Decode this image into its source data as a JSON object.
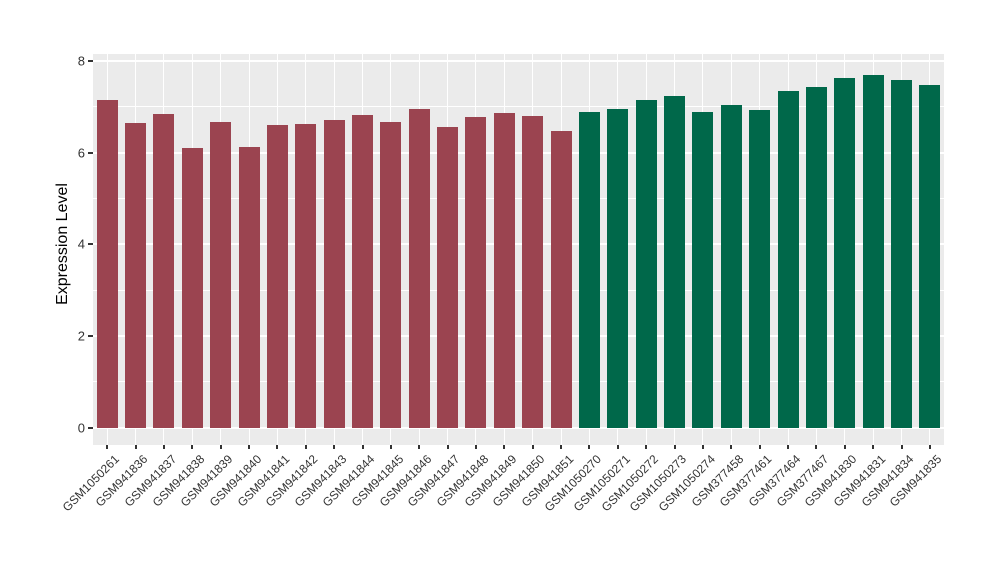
{
  "chart_data": {
    "type": "bar",
    "title": "",
    "xlabel": "",
    "ylabel": "Expression Level",
    "ylim": [
      0,
      8.15
    ],
    "yticks": [
      0,
      2,
      4,
      6,
      8
    ],
    "grid": true,
    "legend": "none",
    "panel_bg": "#EBEBEB",
    "grid_color": "#FFFFFF",
    "axis_text_color": "#333333",
    "groups": [
      {
        "name": "group-left-maroon",
        "color": "#9B4450"
      },
      {
        "name": "group-right-green",
        "color": "#00684A"
      }
    ],
    "samples": [
      {
        "id": "GSM1050261",
        "value": 7.15,
        "group": 0
      },
      {
        "id": "GSM941836",
        "value": 6.65,
        "group": 0
      },
      {
        "id": "GSM941837",
        "value": 6.85,
        "group": 0
      },
      {
        "id": "GSM941838",
        "value": 6.1,
        "group": 0
      },
      {
        "id": "GSM941839",
        "value": 6.67,
        "group": 0
      },
      {
        "id": "GSM941840",
        "value": 6.13,
        "group": 0
      },
      {
        "id": "GSM941841",
        "value": 6.6,
        "group": 0
      },
      {
        "id": "GSM941842",
        "value": 6.62,
        "group": 0
      },
      {
        "id": "GSM941843",
        "value": 6.72,
        "group": 0
      },
      {
        "id": "GSM941844",
        "value": 6.83,
        "group": 0
      },
      {
        "id": "GSM941845",
        "value": 6.67,
        "group": 0
      },
      {
        "id": "GSM941846",
        "value": 6.95,
        "group": 0
      },
      {
        "id": "GSM941847",
        "value": 6.57,
        "group": 0
      },
      {
        "id": "GSM941848",
        "value": 6.78,
        "group": 0
      },
      {
        "id": "GSM941849",
        "value": 6.87,
        "group": 0
      },
      {
        "id": "GSM941850",
        "value": 6.8,
        "group": 0
      },
      {
        "id": "GSM941851",
        "value": 6.48,
        "group": 0
      },
      {
        "id": "GSM1050270",
        "value": 6.88,
        "group": 1
      },
      {
        "id": "GSM1050271",
        "value": 6.95,
        "group": 1
      },
      {
        "id": "GSM1050272",
        "value": 7.14,
        "group": 1
      },
      {
        "id": "GSM1050273",
        "value": 7.23,
        "group": 1
      },
      {
        "id": "GSM1050274",
        "value": 6.88,
        "group": 1
      },
      {
        "id": "GSM377458",
        "value": 7.03,
        "group": 1
      },
      {
        "id": "GSM377461",
        "value": 6.92,
        "group": 1
      },
      {
        "id": "GSM377464",
        "value": 7.34,
        "group": 1
      },
      {
        "id": "GSM377467",
        "value": 7.43,
        "group": 1
      },
      {
        "id": "GSM941830",
        "value": 7.62,
        "group": 1
      },
      {
        "id": "GSM941831",
        "value": 7.7,
        "group": 1
      },
      {
        "id": "GSM941834",
        "value": 7.58,
        "group": 1
      },
      {
        "id": "GSM941835",
        "value": 7.48,
        "group": 1
      }
    ]
  }
}
